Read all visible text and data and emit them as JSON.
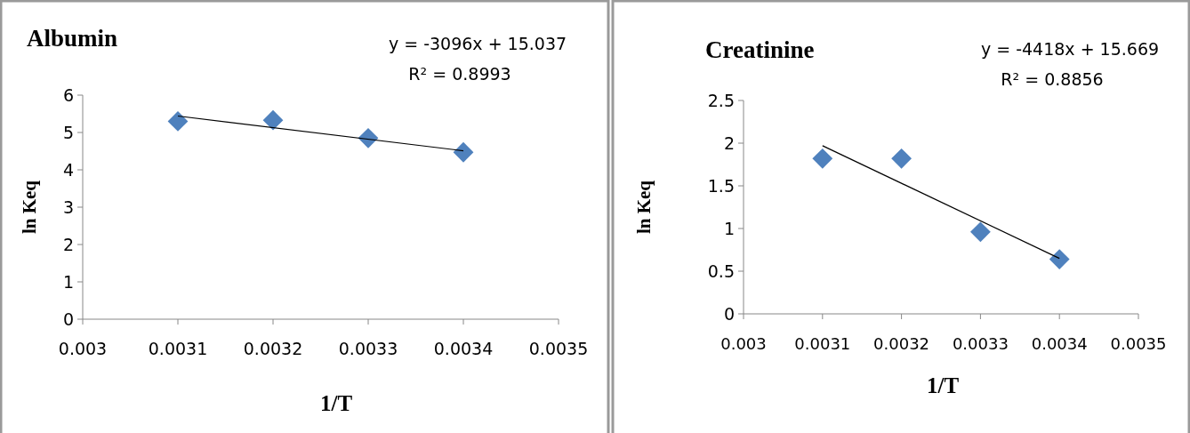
{
  "chart_data": [
    {
      "type": "scatter",
      "title": "Albumin",
      "xlabel": "1/T",
      "ylabel": "ln Keq",
      "xlim": [
        0.003,
        0.0035
      ],
      "xticks": [
        0.003,
        0.0031,
        0.0032,
        0.0033,
        0.0034,
        0.0035
      ],
      "ylim": [
        0,
        6
      ],
      "yticks": [
        0,
        1,
        2,
        3,
        4,
        5,
        6
      ],
      "grid": false,
      "annotations": [
        "y = -3096x + 15.037",
        "R² = 0.8993"
      ],
      "series": [
        {
          "x": [
            0.0031,
            0.0032,
            0.0033,
            0.0034
          ],
          "values": [
            5.3,
            5.33,
            4.85,
            4.47
          ],
          "color": "#4f81bd",
          "marker": "diamond"
        },
        {
          "type": "line",
          "x": [
            0.0031,
            0.0034
          ],
          "values": [
            5.44,
            4.51
          ],
          "color": "#000000",
          "marker": "none"
        }
      ]
    },
    {
      "type": "scatter",
      "title": "Creatinine",
      "xlabel": "1/T",
      "ylabel": "ln Keq",
      "xlim": [
        0.003,
        0.0035
      ],
      "xticks": [
        0.003,
        0.0031,
        0.0032,
        0.0033,
        0.0034,
        0.0035
      ],
      "ylim": [
        0,
        2.5
      ],
      "yticks": [
        0,
        0.5,
        1,
        1.5,
        2,
        2.5
      ],
      "grid": false,
      "annotations": [
        "y = -4418x + 15.669",
        "R² = 0.8856"
      ],
      "series": [
        {
          "x": [
            0.0031,
            0.0032,
            0.0033,
            0.0034
          ],
          "values": [
            1.82,
            1.82,
            0.96,
            0.64
          ],
          "color": "#4f81bd",
          "marker": "diamond"
        },
        {
          "type": "line",
          "x": [
            0.0031,
            0.0034
          ],
          "values": [
            1.97,
            0.65
          ],
          "color": "#000000",
          "marker": "none"
        }
      ]
    }
  ]
}
